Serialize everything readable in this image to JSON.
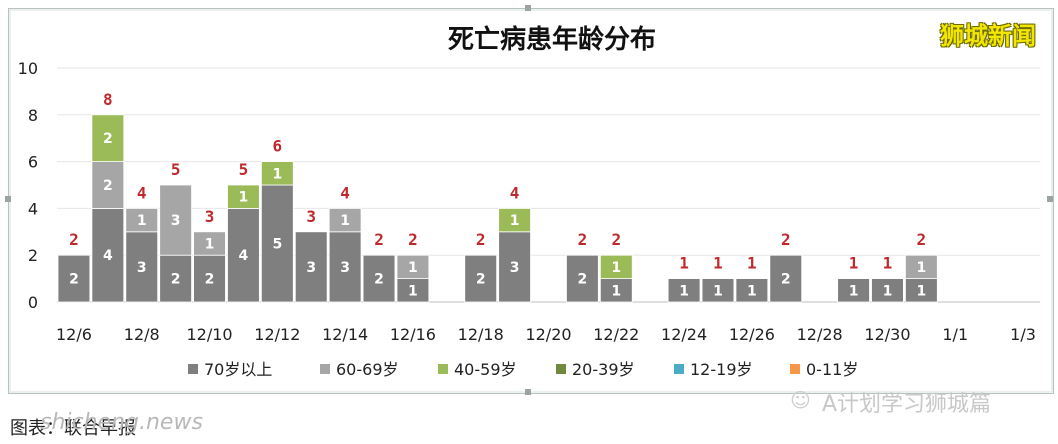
{
  "brand": "狮城新闻",
  "watermark": "A计划学习狮城篇",
  "site_watermark": "shicheng.news",
  "caption": "图表：联合早报",
  "chart_data": {
    "type": "bar",
    "stacked": true,
    "title": "死亡病患年龄分布",
    "ylim": [
      0,
      10
    ],
    "yticks": [
      0,
      2,
      4,
      6,
      8,
      10
    ],
    "x_tick_labels": [
      "12/6",
      "12/8",
      "12/10",
      "12/12",
      "12/14",
      "12/16",
      "12/18",
      "12/20",
      "12/22",
      "12/24",
      "12/26",
      "12/28",
      "12/30",
      "1/1",
      "1/3"
    ],
    "categories": [
      "12/6",
      "12/7",
      "12/8",
      "12/9",
      "12/10",
      "12/11",
      "12/12",
      "12/13",
      "12/14",
      "12/15",
      "12/16",
      "12/17",
      "12/18",
      "12/19",
      "12/20",
      "12/21",
      "12/22",
      "12/23",
      "12/24",
      "12/25",
      "12/26",
      "12/27",
      "12/28",
      "12/29",
      "12/30",
      "12/31",
      "1/1",
      "1/2",
      "1/3"
    ],
    "legend_position": "bottom",
    "series": [
      {
        "name": "70岁以上",
        "color": "#7f7f7f",
        "values": [
          2,
          4,
          3,
          2,
          2,
          4,
          5,
          3,
          3,
          2,
          1,
          0,
          2,
          3,
          0,
          2,
          1,
          0,
          1,
          1,
          1,
          2,
          0,
          1,
          1,
          1,
          0,
          0,
          0
        ]
      },
      {
        "name": "60-69岁",
        "color": "#a6a6a6",
        "values": [
          0,
          2,
          1,
          3,
          1,
          0,
          0,
          0,
          1,
          0,
          1,
          0,
          0,
          0,
          0,
          0,
          0,
          0,
          0,
          0,
          0,
          0,
          0,
          0,
          0,
          1,
          0,
          0,
          0
        ]
      },
      {
        "name": "40-59岁",
        "color": "#9bbb59",
        "values": [
          0,
          2,
          0,
          0,
          0,
          1,
          1,
          0,
          0,
          0,
          0,
          0,
          0,
          1,
          0,
          0,
          1,
          0,
          0,
          0,
          0,
          0,
          0,
          0,
          0,
          0,
          0,
          0,
          0
        ]
      },
      {
        "name": "20-39岁",
        "color": "#71893f",
        "values": [
          0,
          0,
          0,
          0,
          0,
          0,
          0,
          0,
          0,
          0,
          0,
          0,
          0,
          0,
          0,
          0,
          0,
          0,
          0,
          0,
          0,
          0,
          0,
          0,
          0,
          0,
          0,
          0,
          0
        ]
      },
      {
        "name": "12-19岁",
        "color": "#4bacc6",
        "values": [
          0,
          0,
          0,
          0,
          0,
          0,
          0,
          0,
          0,
          0,
          0,
          0,
          0,
          0,
          0,
          0,
          0,
          0,
          0,
          0,
          0,
          0,
          0,
          0,
          0,
          0,
          0,
          0,
          0
        ]
      },
      {
        "name": "0-11岁",
        "color": "#f79646",
        "values": [
          0,
          0,
          0,
          0,
          0,
          0,
          0,
          0,
          0,
          0,
          0,
          0,
          0,
          0,
          0,
          0,
          0,
          0,
          0,
          0,
          0,
          0,
          0,
          0,
          0,
          0,
          0,
          0,
          0
        ]
      }
    ],
    "totals": [
      2,
      8,
      4,
      5,
      3,
      5,
      6,
      3,
      4,
      2,
      2,
      0,
      2,
      4,
      0,
      2,
      2,
      0,
      1,
      1,
      1,
      2,
      0,
      1,
      1,
      2,
      0,
      0,
      0
    ]
  }
}
